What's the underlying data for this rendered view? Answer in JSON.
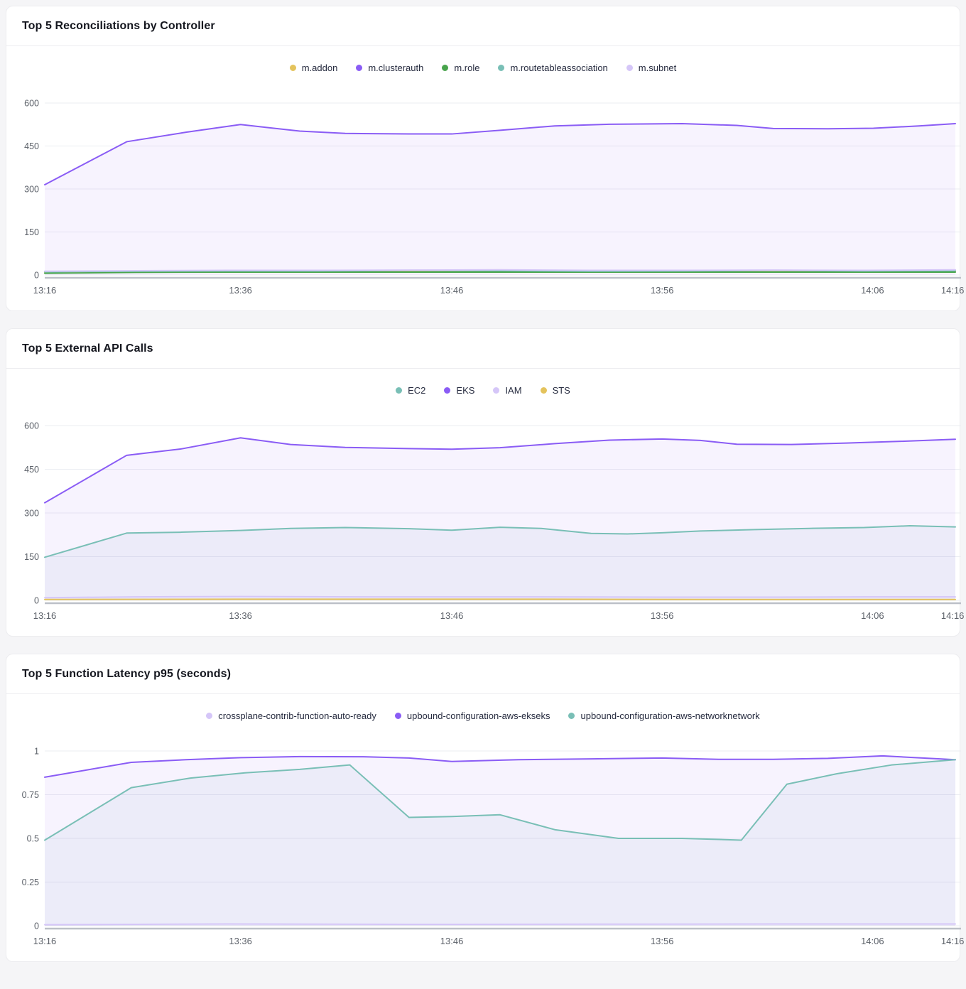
{
  "chart_data": [
    {
      "title": "Top 5 Reconciliations by Controller",
      "type": "area",
      "legend_position": "top-center",
      "grid": "horizontal",
      "ylim": [
        0,
        600
      ],
      "y_ticks": [
        0,
        150,
        300,
        450,
        600
      ],
      "x_ticks": [
        {
          "label": "13:16",
          "f": 0
        },
        {
          "label": "13:36",
          "f": 0.215
        },
        {
          "label": "13:46",
          "f": 0.447
        },
        {
          "label": "13:56",
          "f": 0.678
        },
        {
          "label": "14:06",
          "f": 0.909
        },
        {
          "label": "14:16",
          "f": 0.997
        }
      ],
      "series": [
        {
          "name": "m.addon",
          "color": "#e4c35c",
          "fill": "none",
          "points": [
            [
              0,
              8
            ],
            [
              0.1,
              11
            ],
            [
              0.2,
              12
            ],
            [
              0.3,
              11
            ],
            [
              0.4,
              12
            ],
            [
              0.5,
              12
            ],
            [
              0.6,
              11
            ],
            [
              0.7,
              12
            ],
            [
              0.8,
              11
            ],
            [
              0.9,
              12
            ],
            [
              1,
              12
            ]
          ]
        },
        {
          "name": "m.clusterauth",
          "color": "#8a5cf5",
          "fill": "rgba(138,92,245,0.07)",
          "points": [
            [
              0,
              315
            ],
            [
              0.09,
              465
            ],
            [
              0.155,
              498
            ],
            [
              0.215,
              525
            ],
            [
              0.28,
              502
            ],
            [
              0.33,
              494
            ],
            [
              0.4,
              492
            ],
            [
              0.447,
              492
            ],
            [
              0.5,
              505
            ],
            [
              0.56,
              520
            ],
            [
              0.62,
              526
            ],
            [
              0.7,
              528
            ],
            [
              0.76,
              522
            ],
            [
              0.8,
              511
            ],
            [
              0.86,
              510
            ],
            [
              0.91,
              512
            ],
            [
              0.96,
              520
            ],
            [
              1,
              528
            ]
          ]
        },
        {
          "name": "m.role",
          "color": "#48a44c",
          "fill": "none",
          "points": [
            [
              0,
              6
            ],
            [
              0.1,
              9
            ],
            [
              0.2,
              10
            ],
            [
              0.3,
              10
            ],
            [
              0.4,
              10
            ],
            [
              0.5,
              10
            ],
            [
              0.6,
              10
            ],
            [
              0.7,
              10
            ],
            [
              0.8,
              10
            ],
            [
              0.9,
              10
            ],
            [
              1,
              10
            ]
          ]
        },
        {
          "name": "m.routetableassociation",
          "color": "#79bfb6",
          "fill": "none",
          "points": [
            [
              0,
              11
            ],
            [
              0.1,
              13
            ],
            [
              0.2,
              14
            ],
            [
              0.3,
              14
            ],
            [
              0.4,
              16
            ],
            [
              0.5,
              15
            ],
            [
              0.6,
              13
            ],
            [
              0.7,
              14
            ],
            [
              0.8,
              16
            ],
            [
              0.9,
              14
            ],
            [
              1,
              15
            ]
          ]
        },
        {
          "name": "m.subnet",
          "color": "#d5c6f8",
          "fill": "none",
          "points": [
            [
              0,
              13
            ],
            [
              0.1,
              15
            ],
            [
              0.2,
              16
            ],
            [
              0.3,
              16
            ],
            [
              0.4,
              17
            ],
            [
              0.5,
              18
            ],
            [
              0.6,
              16
            ],
            [
              0.7,
              16
            ],
            [
              0.8,
              17
            ],
            [
              0.9,
              16
            ],
            [
              1,
              18
            ]
          ]
        }
      ]
    },
    {
      "title": "Top 5 External API Calls",
      "type": "area",
      "legend_position": "top-center",
      "grid": "horizontal",
      "ylim": [
        0,
        600
      ],
      "y_ticks": [
        0,
        150,
        300,
        450,
        600
      ],
      "x_ticks": [
        {
          "label": "13:16",
          "f": 0
        },
        {
          "label": "13:36",
          "f": 0.215
        },
        {
          "label": "13:46",
          "f": 0.447
        },
        {
          "label": "13:56",
          "f": 0.678
        },
        {
          "label": "14:06",
          "f": 0.909
        },
        {
          "label": "14:16",
          "f": 0.997
        }
      ],
      "series": [
        {
          "name": "EC2",
          "color": "#79bfb6",
          "fill": "rgba(110,150,185,0.08)",
          "points": [
            [
              0,
              148
            ],
            [
              0.09,
              231
            ],
            [
              0.15,
              234
            ],
            [
              0.215,
              240
            ],
            [
              0.27,
              247
            ],
            [
              0.33,
              250
            ],
            [
              0.4,
              246
            ],
            [
              0.447,
              241
            ],
            [
              0.5,
              251
            ],
            [
              0.545,
              247
            ],
            [
              0.6,
              230
            ],
            [
              0.64,
              228
            ],
            [
              0.678,
              232
            ],
            [
              0.72,
              238
            ],
            [
              0.78,
              243
            ],
            [
              0.84,
              247
            ],
            [
              0.9,
              250
            ],
            [
              0.95,
              256
            ],
            [
              1,
              252
            ]
          ]
        },
        {
          "name": "EKS",
          "color": "#8a5cf5",
          "fill": "rgba(138,92,245,0.07)",
          "points": [
            [
              0,
              335
            ],
            [
              0.09,
              498
            ],
            [
              0.15,
              520
            ],
            [
              0.215,
              558
            ],
            [
              0.27,
              535
            ],
            [
              0.33,
              525
            ],
            [
              0.4,
              521
            ],
            [
              0.447,
              519
            ],
            [
              0.5,
              524
            ],
            [
              0.56,
              538
            ],
            [
              0.62,
              550
            ],
            [
              0.678,
              554
            ],
            [
              0.72,
              549
            ],
            [
              0.76,
              536
            ],
            [
              0.82,
              535
            ],
            [
              0.88,
              540
            ],
            [
              0.94,
              546
            ],
            [
              1,
              553
            ]
          ]
        },
        {
          "name": "IAM",
          "color": "#d5c6f8",
          "fill": "none",
          "points": [
            [
              0,
              9
            ],
            [
              0.1,
              12
            ],
            [
              0.215,
              13
            ],
            [
              0.35,
              12
            ],
            [
              0.5,
              12
            ],
            [
              0.678,
              11
            ],
            [
              0.8,
              11
            ],
            [
              0.9,
              12
            ],
            [
              1,
              12
            ]
          ]
        },
        {
          "name": "STS",
          "color": "#e4c35c",
          "fill": "none",
          "points": [
            [
              0,
              3
            ],
            [
              0.215,
              4
            ],
            [
              0.5,
              4
            ],
            [
              0.75,
              3
            ],
            [
              1,
              3
            ]
          ]
        }
      ]
    },
    {
      "title": "Top 5 Function Latency p95 (seconds)",
      "type": "area",
      "legend_position": "top-center",
      "grid": "horizontal",
      "ylim": [
        0,
        1
      ],
      "y_ticks": [
        0,
        0.25,
        0.5,
        0.75,
        1
      ],
      "x_ticks": [
        {
          "label": "13:16",
          "f": 0
        },
        {
          "label": "13:36",
          "f": 0.215
        },
        {
          "label": "13:46",
          "f": 0.447
        },
        {
          "label": "13:56",
          "f": 0.678
        },
        {
          "label": "14:06",
          "f": 0.909
        },
        {
          "label": "14:16",
          "f": 0.997
        }
      ],
      "series": [
        {
          "name": "crossplane-contrib-function-auto-ready",
          "color": "#d5c6f8",
          "fill": "none",
          "points": [
            [
              0,
              0.006
            ],
            [
              0.2,
              0.01
            ],
            [
              0.4,
              0.008
            ],
            [
              0.6,
              0.009
            ],
            [
              0.8,
              0.01
            ],
            [
              1,
              0.01
            ]
          ]
        },
        {
          "name": "upbound-configuration-aws-ekseks",
          "color": "#8a5cf5",
          "fill": "rgba(138,92,245,0.07)",
          "points": [
            [
              0,
              0.85
            ],
            [
              0.095,
              0.935
            ],
            [
              0.155,
              0.95
            ],
            [
              0.215,
              0.962
            ],
            [
              0.28,
              0.968
            ],
            [
              0.35,
              0.967
            ],
            [
              0.4,
              0.96
            ],
            [
              0.447,
              0.94
            ],
            [
              0.52,
              0.95
            ],
            [
              0.6,
              0.955
            ],
            [
              0.678,
              0.96
            ],
            [
              0.74,
              0.952
            ],
            [
              0.8,
              0.952
            ],
            [
              0.86,
              0.958
            ],
            [
              0.92,
              0.972
            ],
            [
              1,
              0.95
            ]
          ]
        },
        {
          "name": "upbound-configuration-aws-networknetwork",
          "color": "#79bfb6",
          "fill": "rgba(110,150,185,0.08)",
          "points": [
            [
              0,
              0.49
            ],
            [
              0.095,
              0.79
            ],
            [
              0.16,
              0.845
            ],
            [
              0.22,
              0.875
            ],
            [
              0.28,
              0.895
            ],
            [
              0.335,
              0.92
            ],
            [
              0.4,
              0.62
            ],
            [
              0.447,
              0.625
            ],
            [
              0.5,
              0.635
            ],
            [
              0.56,
              0.55
            ],
            [
              0.63,
              0.5
            ],
            [
              0.7,
              0.5
            ],
            [
              0.765,
              0.49
            ],
            [
              0.815,
              0.81
            ],
            [
              0.87,
              0.87
            ],
            [
              0.93,
              0.92
            ],
            [
              1,
              0.95
            ]
          ]
        }
      ]
    }
  ],
  "colors": {
    "grid": "#ebedf2",
    "axis": "#bcc0c8",
    "axis_text": "#5c6169",
    "page_background": "#f5f5f7"
  }
}
